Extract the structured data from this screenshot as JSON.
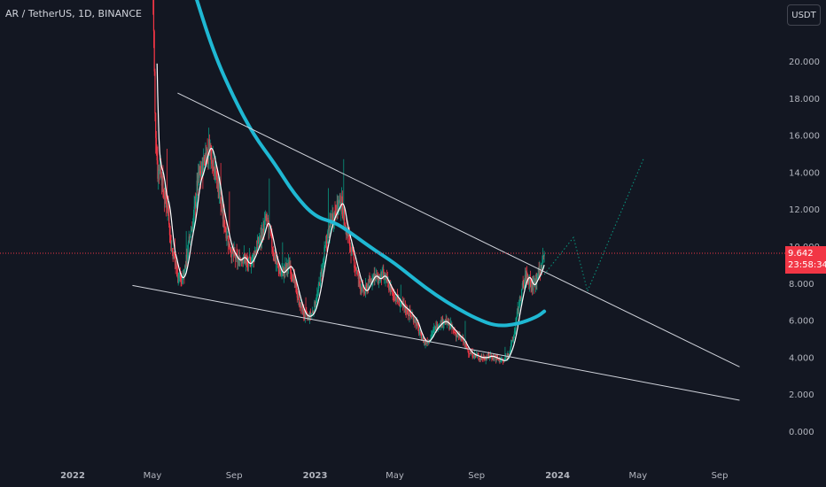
{
  "header": {
    "title": "AR / TetherUS, 1D, BINANCE"
  },
  "currency_button": {
    "label": "USDT"
  },
  "price_badge": {
    "price": "9.642",
    "countdown": "23:58:34"
  },
  "colors": {
    "background": "#131722",
    "grid": "#1f2330",
    "up_candle": "#089981",
    "down_candle": "#f23645",
    "ma_long": "#1fb8d3",
    "ma_short": "#ffffff",
    "trendline": "#d1d4dc",
    "projection": "#089981",
    "price_line": "#f23645",
    "axis_text": "#b2b5be"
  },
  "chart_data": {
    "type": "candlestick",
    "title": "AR / TetherUS, 1D, BINANCE",
    "symbol": "AR / TetherUS",
    "interval": "1D",
    "exchange": "BINANCE",
    "currency": "USDT",
    "last_price": 9.642,
    "ylim": [
      0,
      22.5
    ],
    "y_ticks": [
      "0.000",
      "2.000",
      "4.000",
      "6.000",
      "8.000",
      "10.000",
      "12.000",
      "14.000",
      "16.000",
      "18.000",
      "20.000"
    ],
    "x_ticks": [
      {
        "label": "2022",
        "bold": true,
        "date": "2022-01"
      },
      {
        "label": "May",
        "bold": false,
        "date": "2022-05"
      },
      {
        "label": "Sep",
        "bold": false,
        "date": "2022-09"
      },
      {
        "label": "2023",
        "bold": true,
        "date": "2023-01"
      },
      {
        "label": "May",
        "bold": false,
        "date": "2023-05"
      },
      {
        "label": "Sep",
        "bold": false,
        "date": "2023-09"
      },
      {
        "label": "2024",
        "bold": true,
        "date": "2024-01"
      },
      {
        "label": "May",
        "bold": false,
        "date": "2024-05"
      },
      {
        "label": "Sep",
        "bold": false,
        "date": "2024-09"
      }
    ],
    "grid": false,
    "price_path": [
      [
        "2022-05-01",
        26.0
      ],
      [
        "2022-05-05",
        17.0
      ],
      [
        "2022-05-09",
        14.0
      ],
      [
        "2022-05-13",
        14.5
      ],
      [
        "2022-05-17",
        13.0
      ],
      [
        "2022-05-21",
        12.5
      ],
      [
        "2022-05-25",
        12.0
      ],
      [
        "2022-05-29",
        10.0
      ],
      [
        "2022-06-02",
        9.5
      ],
      [
        "2022-06-08",
        8.5
      ],
      [
        "2022-06-14",
        8.2
      ],
      [
        "2022-06-20",
        9.0
      ],
      [
        "2022-06-26",
        10.5
      ],
      [
        "2022-07-02",
        11.5
      ],
      [
        "2022-07-08",
        13.5
      ],
      [
        "2022-07-14",
        14.0
      ],
      [
        "2022-07-20",
        15.0
      ],
      [
        "2022-07-26",
        15.5
      ],
      [
        "2022-08-01",
        14.5
      ],
      [
        "2022-08-07",
        13.5
      ],
      [
        "2022-08-13",
        12.0
      ],
      [
        "2022-08-19",
        11.0
      ],
      [
        "2022-08-25",
        10.0
      ],
      [
        "2022-09-01",
        9.5
      ],
      [
        "2022-09-07",
        9.2
      ],
      [
        "2022-09-14",
        9.5
      ],
      [
        "2022-09-21",
        9.0
      ],
      [
        "2022-09-28",
        9.3
      ],
      [
        "2022-10-05",
        10.0
      ],
      [
        "2022-10-12",
        10.5
      ],
      [
        "2022-10-19",
        11.5
      ],
      [
        "2022-10-26",
        10.5
      ],
      [
        "2022-10-31",
        9.5
      ],
      [
        "2022-11-05",
        9.0
      ],
      [
        "2022-11-10",
        8.5
      ],
      [
        "2022-11-17",
        8.8
      ],
      [
        "2022-11-24",
        9.0
      ],
      [
        "2022-12-01",
        8.0
      ],
      [
        "2022-12-08",
        7.0
      ],
      [
        "2022-12-15",
        6.3
      ],
      [
        "2022-12-22",
        6.2
      ],
      [
        "2022-12-29",
        6.5
      ],
      [
        "2023-01-05",
        7.5
      ],
      [
        "2023-01-12",
        9.0
      ],
      [
        "2023-01-19",
        10.5
      ],
      [
        "2023-01-26",
        11.5
      ],
      [
        "2023-02-02",
        12.0
      ],
      [
        "2023-02-09",
        12.5
      ],
      [
        "2023-02-16",
        11.0
      ],
      [
        "2023-02-23",
        10.0
      ],
      [
        "2023-03-02",
        9.0
      ],
      [
        "2023-03-09",
        8.0
      ],
      [
        "2023-03-16",
        7.5
      ],
      [
        "2023-03-23",
        8.0
      ],
      [
        "2023-03-30",
        8.5
      ],
      [
        "2023-04-06",
        8.2
      ],
      [
        "2023-04-13",
        8.5
      ],
      [
        "2023-04-20",
        8.0
      ],
      [
        "2023-04-27",
        7.5
      ],
      [
        "2023-05-04",
        7.2
      ],
      [
        "2023-05-11",
        6.8
      ],
      [
        "2023-05-18",
        6.6
      ],
      [
        "2023-05-25",
        6.3
      ],
      [
        "2023-06-01",
        6.0
      ],
      [
        "2023-06-08",
        5.2
      ],
      [
        "2023-06-15",
        4.8
      ],
      [
        "2023-06-22",
        5.0
      ],
      [
        "2023-06-29",
        5.5
      ],
      [
        "2023-07-06",
        5.8
      ],
      [
        "2023-07-13",
        6.0
      ],
      [
        "2023-07-20",
        5.8
      ],
      [
        "2023-07-27",
        5.5
      ],
      [
        "2023-08-03",
        5.2
      ],
      [
        "2023-08-10",
        5.0
      ],
      [
        "2023-08-17",
        4.5
      ],
      [
        "2023-08-24",
        4.2
      ],
      [
        "2023-08-31",
        4.1
      ],
      [
        "2023-09-07",
        4.0
      ],
      [
        "2023-09-14",
        4.0
      ],
      [
        "2023-09-21",
        4.1
      ],
      [
        "2023-09-28",
        4.0
      ],
      [
        "2023-10-05",
        3.9
      ],
      [
        "2023-10-12",
        3.8
      ],
      [
        "2023-10-19",
        4.2
      ],
      [
        "2023-10-26",
        5.0
      ],
      [
        "2023-11-02",
        6.5
      ],
      [
        "2023-11-09",
        7.8
      ],
      [
        "2023-11-16",
        8.5
      ],
      [
        "2023-11-23",
        7.8
      ],
      [
        "2023-11-30",
        8.3
      ],
      [
        "2023-12-07",
        8.8
      ],
      [
        "2023-12-12",
        9.64
      ]
    ],
    "ma_long": [
      [
        "2022-07-01",
        24.0
      ],
      [
        "2022-08-01",
        20.5
      ],
      [
        "2022-09-01",
        18.0
      ],
      [
        "2022-10-01",
        16.0
      ],
      [
        "2022-11-01",
        14.5
      ],
      [
        "2022-12-01",
        12.8
      ],
      [
        "2023-01-01",
        11.6
      ],
      [
        "2023-02-01",
        11.3
      ],
      [
        "2023-03-01",
        10.6
      ],
      [
        "2023-04-01",
        9.8
      ],
      [
        "2023-05-01",
        9.1
      ],
      [
        "2023-06-01",
        8.2
      ],
      [
        "2023-07-01",
        7.4
      ],
      [
        "2023-08-01",
        6.7
      ],
      [
        "2023-09-01",
        6.1
      ],
      [
        "2023-10-01",
        5.7
      ],
      [
        "2023-11-01",
        5.8
      ],
      [
        "2023-12-01",
        6.2
      ],
      [
        "2023-12-12",
        6.5
      ]
    ],
    "ma_short_window": 7,
    "trendlines": [
      {
        "name": "upper-trendline",
        "from": [
          "2022-06-08",
          18.3
        ],
        "to": [
          "2024-10-01",
          3.5
        ]
      },
      {
        "name": "lower-trendline",
        "from": [
          "2022-04-01",
          7.9
        ],
        "to": [
          "2024-10-01",
          1.7
        ]
      }
    ],
    "projection": [
      [
        "2023-12-12",
        8.5
      ],
      [
        "2024-01-25",
        10.5
      ],
      [
        "2024-02-15",
        7.6
      ],
      [
        "2024-05-10",
        14.8
      ]
    ]
  }
}
